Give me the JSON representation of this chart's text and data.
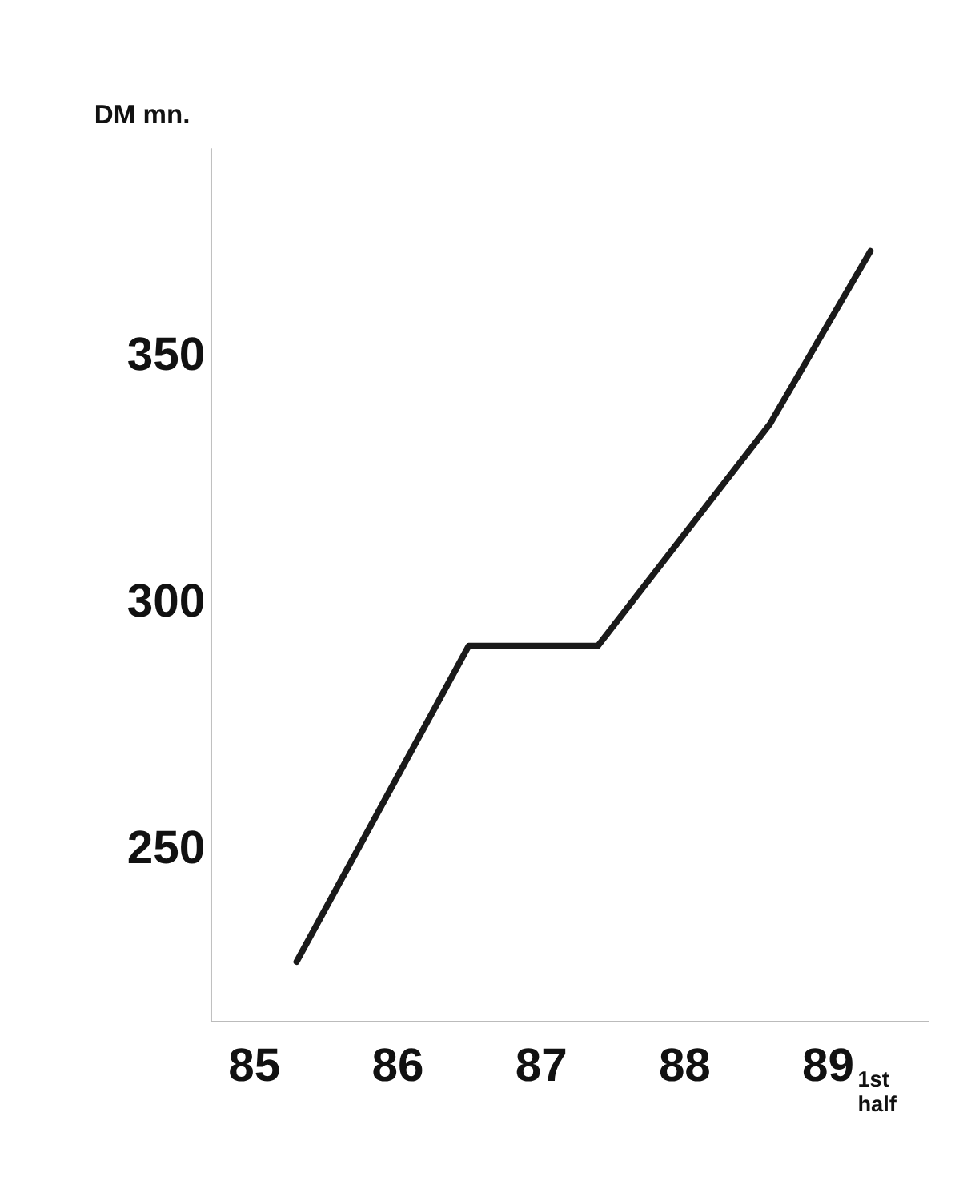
{
  "chart_data": {
    "type": "line",
    "ylabel": "DM mn.",
    "x": [
      85.3,
      86.5,
      87.4,
      88.6,
      89.3
    ],
    "series": [
      {
        "color": "#1a1a1a",
        "values": [
          227,
          291,
          291,
          336,
          371
        ]
      }
    ],
    "xlim": [
      84.7,
      89.7
    ],
    "xticks": [
      85,
      86,
      87,
      88,
      89
    ],
    "ylim": [
      215,
      392
    ],
    "yticks": [
      250,
      300,
      350
    ],
    "grid": false,
    "legend": false,
    "marker": "none",
    "line_style": "solid",
    "annotations": [
      "1st half"
    ]
  }
}
